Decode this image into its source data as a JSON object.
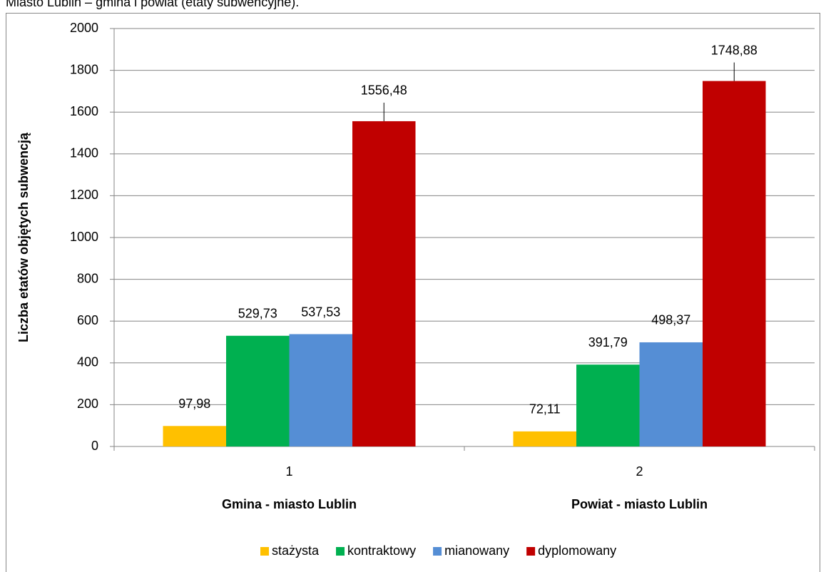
{
  "caption": "Miasto Lublin – gmina i powiat (etaty subwencyjne).",
  "chart_data": {
    "type": "bar",
    "y_label": "Liczba etatów objętych subwencją",
    "categories": [
      "1",
      "2"
    ],
    "group_labels": [
      "Gmina - miasto Lublin",
      "Powiat - miasto Lublin"
    ],
    "series": [
      {
        "name": "stażysta",
        "color": "#FFC000",
        "values": [
          97.98,
          72.11
        ],
        "value_labels": [
          "97,98",
          "72,11"
        ]
      },
      {
        "name": "kontraktowy",
        "color": "#00B050",
        "values": [
          529.73,
          391.79
        ],
        "value_labels": [
          "529,73",
          "391,79"
        ]
      },
      {
        "name": "mianowany",
        "color": "#558ED5",
        "values": [
          537.53,
          498.37
        ],
        "value_labels": [
          "537,53",
          "498,37"
        ]
      },
      {
        "name": "dyplomowany",
        "color": "#C00000",
        "values": [
          1556.48,
          1748.88
        ],
        "value_labels": [
          "1556,48",
          "1748,88"
        ]
      }
    ],
    "ylim": [
      0,
      2000
    ],
    "yticks": [
      0,
      200,
      400,
      600,
      800,
      1000,
      1200,
      1400,
      1600,
      1800,
      2000
    ],
    "grid": true,
    "legend": "bottom"
  }
}
